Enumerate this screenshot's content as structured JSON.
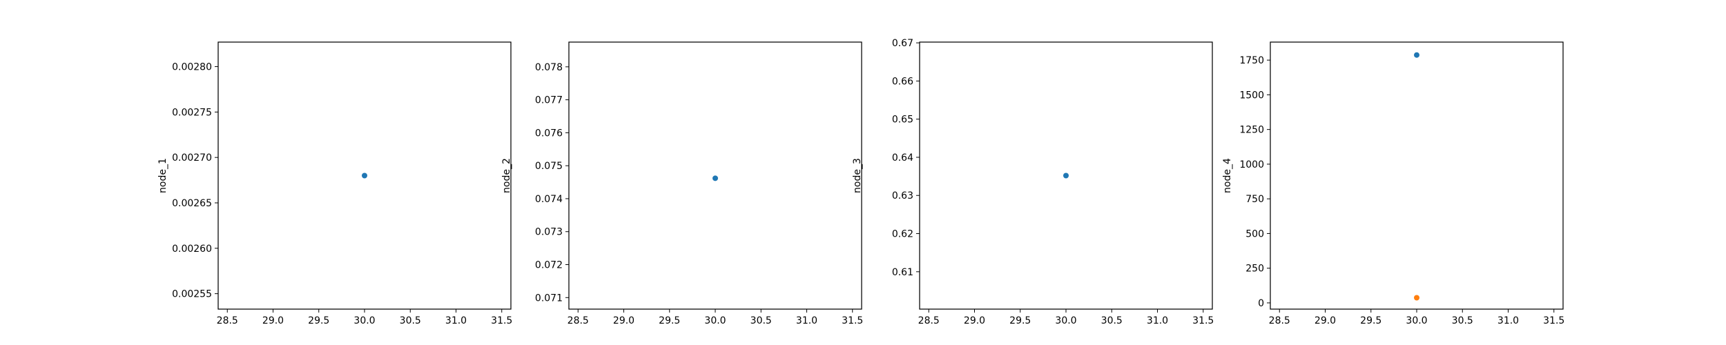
{
  "chart_data": [
    {
      "type": "scatter",
      "ylabel": "node_1",
      "xlim": [
        28.4,
        31.6
      ],
      "ylim": [
        0.002533,
        0.002827
      ],
      "xticks": [
        "28.5",
        "29.0",
        "29.5",
        "30.0",
        "30.5",
        "31.0",
        "31.5"
      ],
      "yticks": [
        "0.00255",
        "0.00260",
        "0.00265",
        "0.00270",
        "0.00275",
        "0.00280"
      ],
      "series": [
        {
          "color": "#1f77b4",
          "points": [
            [
              30.0,
              0.00268
            ]
          ]
        }
      ]
    },
    {
      "type": "scatter",
      "ylabel": "node_2",
      "xlim": [
        28.4,
        31.6
      ],
      "ylim": [
        0.07065,
        0.07875
      ],
      "xticks": [
        "28.5",
        "29.0",
        "29.5",
        "30.0",
        "30.5",
        "31.0",
        "31.5"
      ],
      "yticks": [
        "0.071",
        "0.072",
        "0.073",
        "0.074",
        "0.075",
        "0.076",
        "0.077",
        "0.078"
      ],
      "series": [
        {
          "color": "#1f77b4",
          "points": [
            [
              30.0,
              0.07462
            ]
          ]
        }
      ]
    },
    {
      "type": "scatter",
      "ylabel": "node_3",
      "xlim": [
        28.4,
        31.6
      ],
      "ylim": [
        0.6002,
        0.6702
      ],
      "xticks": [
        "28.5",
        "29.0",
        "29.5",
        "30.0",
        "30.5",
        "31.0",
        "31.5"
      ],
      "yticks": [
        "0.61",
        "0.62",
        "0.63",
        "0.64",
        "0.65",
        "0.66",
        "0.67"
      ],
      "series": [
        {
          "color": "#1f77b4",
          "points": [
            [
              30.0,
              0.6352
            ]
          ]
        }
      ]
    },
    {
      "type": "scatter",
      "ylabel": "node_4",
      "xlim": [
        28.4,
        31.6
      ],
      "ylim": [
        -45,
        1880
      ],
      "xticks": [
        "28.5",
        "29.0",
        "29.5",
        "30.0",
        "30.5",
        "31.0",
        "31.5"
      ],
      "yticks": [
        "0",
        "250",
        "500",
        "750",
        "1000",
        "1250",
        "1500",
        "1750"
      ],
      "series": [
        {
          "color": "#1f77b4",
          "points": [
            [
              30.0,
              1787
            ]
          ]
        },
        {
          "color": "#ff7f0e",
          "points": [
            [
              30.0,
              37
            ]
          ]
        }
      ]
    }
  ]
}
